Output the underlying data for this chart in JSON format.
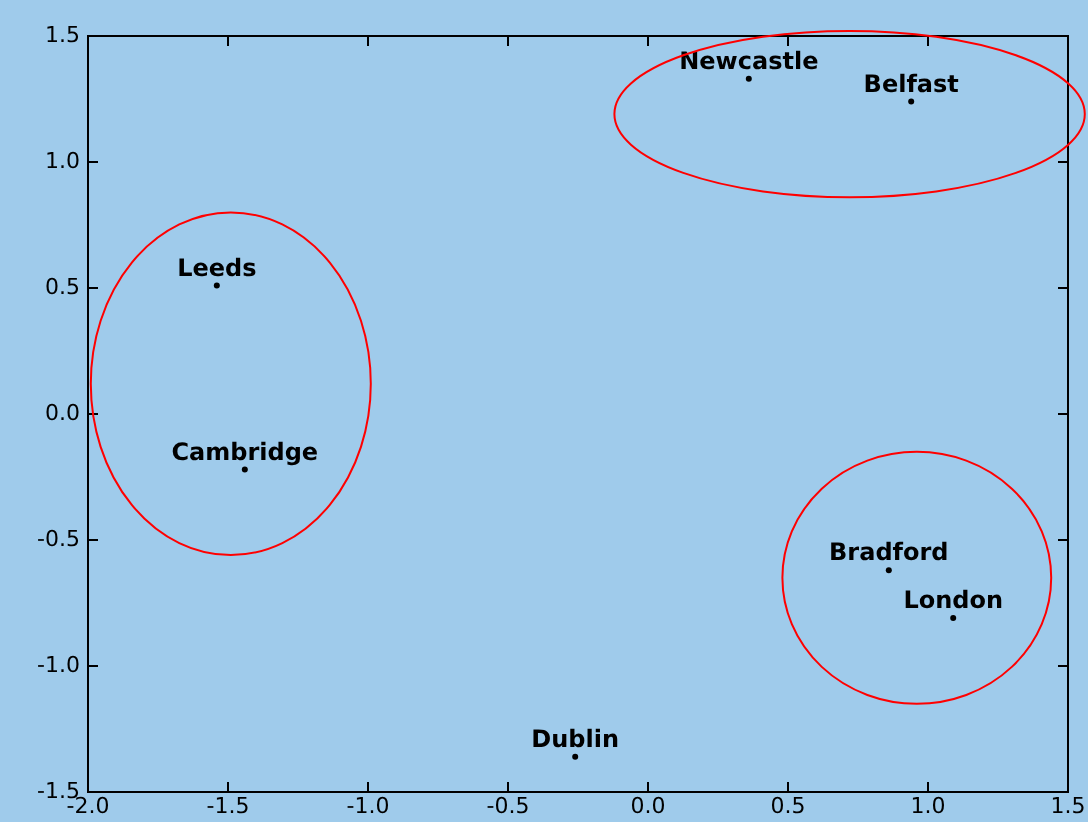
{
  "chart_data": {
    "type": "scatter",
    "marker": "circle",
    "grid": false,
    "legend": false,
    "color": "#000000",
    "x": [
      0.36,
      0.94,
      -1.54,
      -1.44,
      0.86,
      1.09,
      -0.26
    ],
    "values": [
      1.33,
      1.24,
      0.51,
      -0.22,
      -0.62,
      -0.81,
      -1.36
    ],
    "value_labels": [
      "Newcastle",
      "Belfast",
      "Leeds",
      "Cambridge",
      "Bradford",
      "London",
      "Dublin"
    ],
    "xlim": [
      -2,
      1.5
    ],
    "xticks": [
      {
        "value": -2,
        "label": "-2.0"
      },
      {
        "value": -1.5,
        "label": "-1.5"
      },
      {
        "value": -1,
        "label": "-1.0"
      },
      {
        "value": -0.5,
        "label": "-0.5"
      },
      {
        "value": 0,
        "label": "0.0"
      },
      {
        "value": 0.5,
        "label": "0.5"
      },
      {
        "value": 1,
        "label": "1.0"
      },
      {
        "value": 1.5,
        "label": "1.5"
      }
    ],
    "ylim": [
      -1.5,
      1.5
    ],
    "yticks": [
      {
        "value": -1.5,
        "label": "-1.5"
      },
      {
        "value": -1,
        "label": "-1.0"
      },
      {
        "value": -0.5,
        "label": "-0.5"
      },
      {
        "value": 0,
        "label": "0.0"
      },
      {
        "value": 0.5,
        "label": "0.5"
      },
      {
        "value": 1,
        "label": "1.0"
      },
      {
        "value": 1.5,
        "label": "1.5"
      }
    ]
  }
}
